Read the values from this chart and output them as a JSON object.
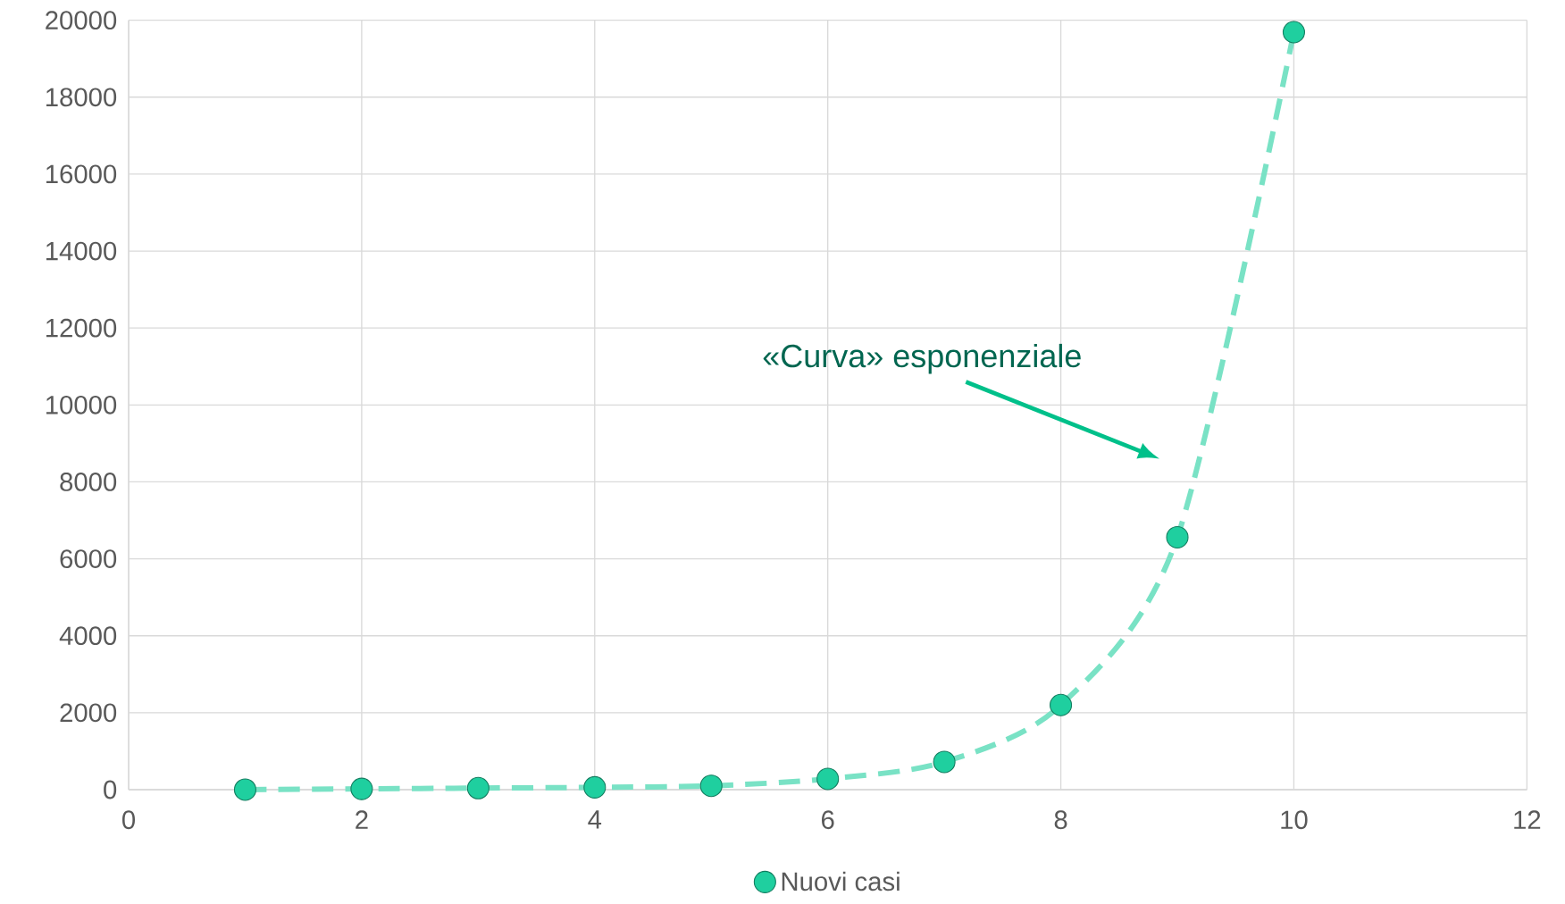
{
  "chart_data": {
    "type": "line",
    "x": [
      1,
      2,
      3,
      4,
      5,
      6,
      7,
      8,
      9,
      10
    ],
    "series": [
      {
        "name": "Nuovi casi",
        "color": "#1fcf9f",
        "values": [
          0,
          20,
          40,
          60,
          100,
          280,
          720,
          2200,
          6560,
          19690
        ]
      }
    ],
    "xlim": [
      0,
      12
    ],
    "xticks": [
      0,
      2,
      4,
      6,
      8,
      10,
      12
    ],
    "ylim": [
      0,
      20000
    ],
    "yticks": [
      0,
      2000,
      4000,
      6000,
      8000,
      10000,
      12000,
      14000,
      16000,
      18000,
      20000
    ],
    "grid": true,
    "legend": "bottom",
    "marker": "circle",
    "line_style": "dashed",
    "annotations": [
      "«Curva» esponenziale"
    ]
  }
}
